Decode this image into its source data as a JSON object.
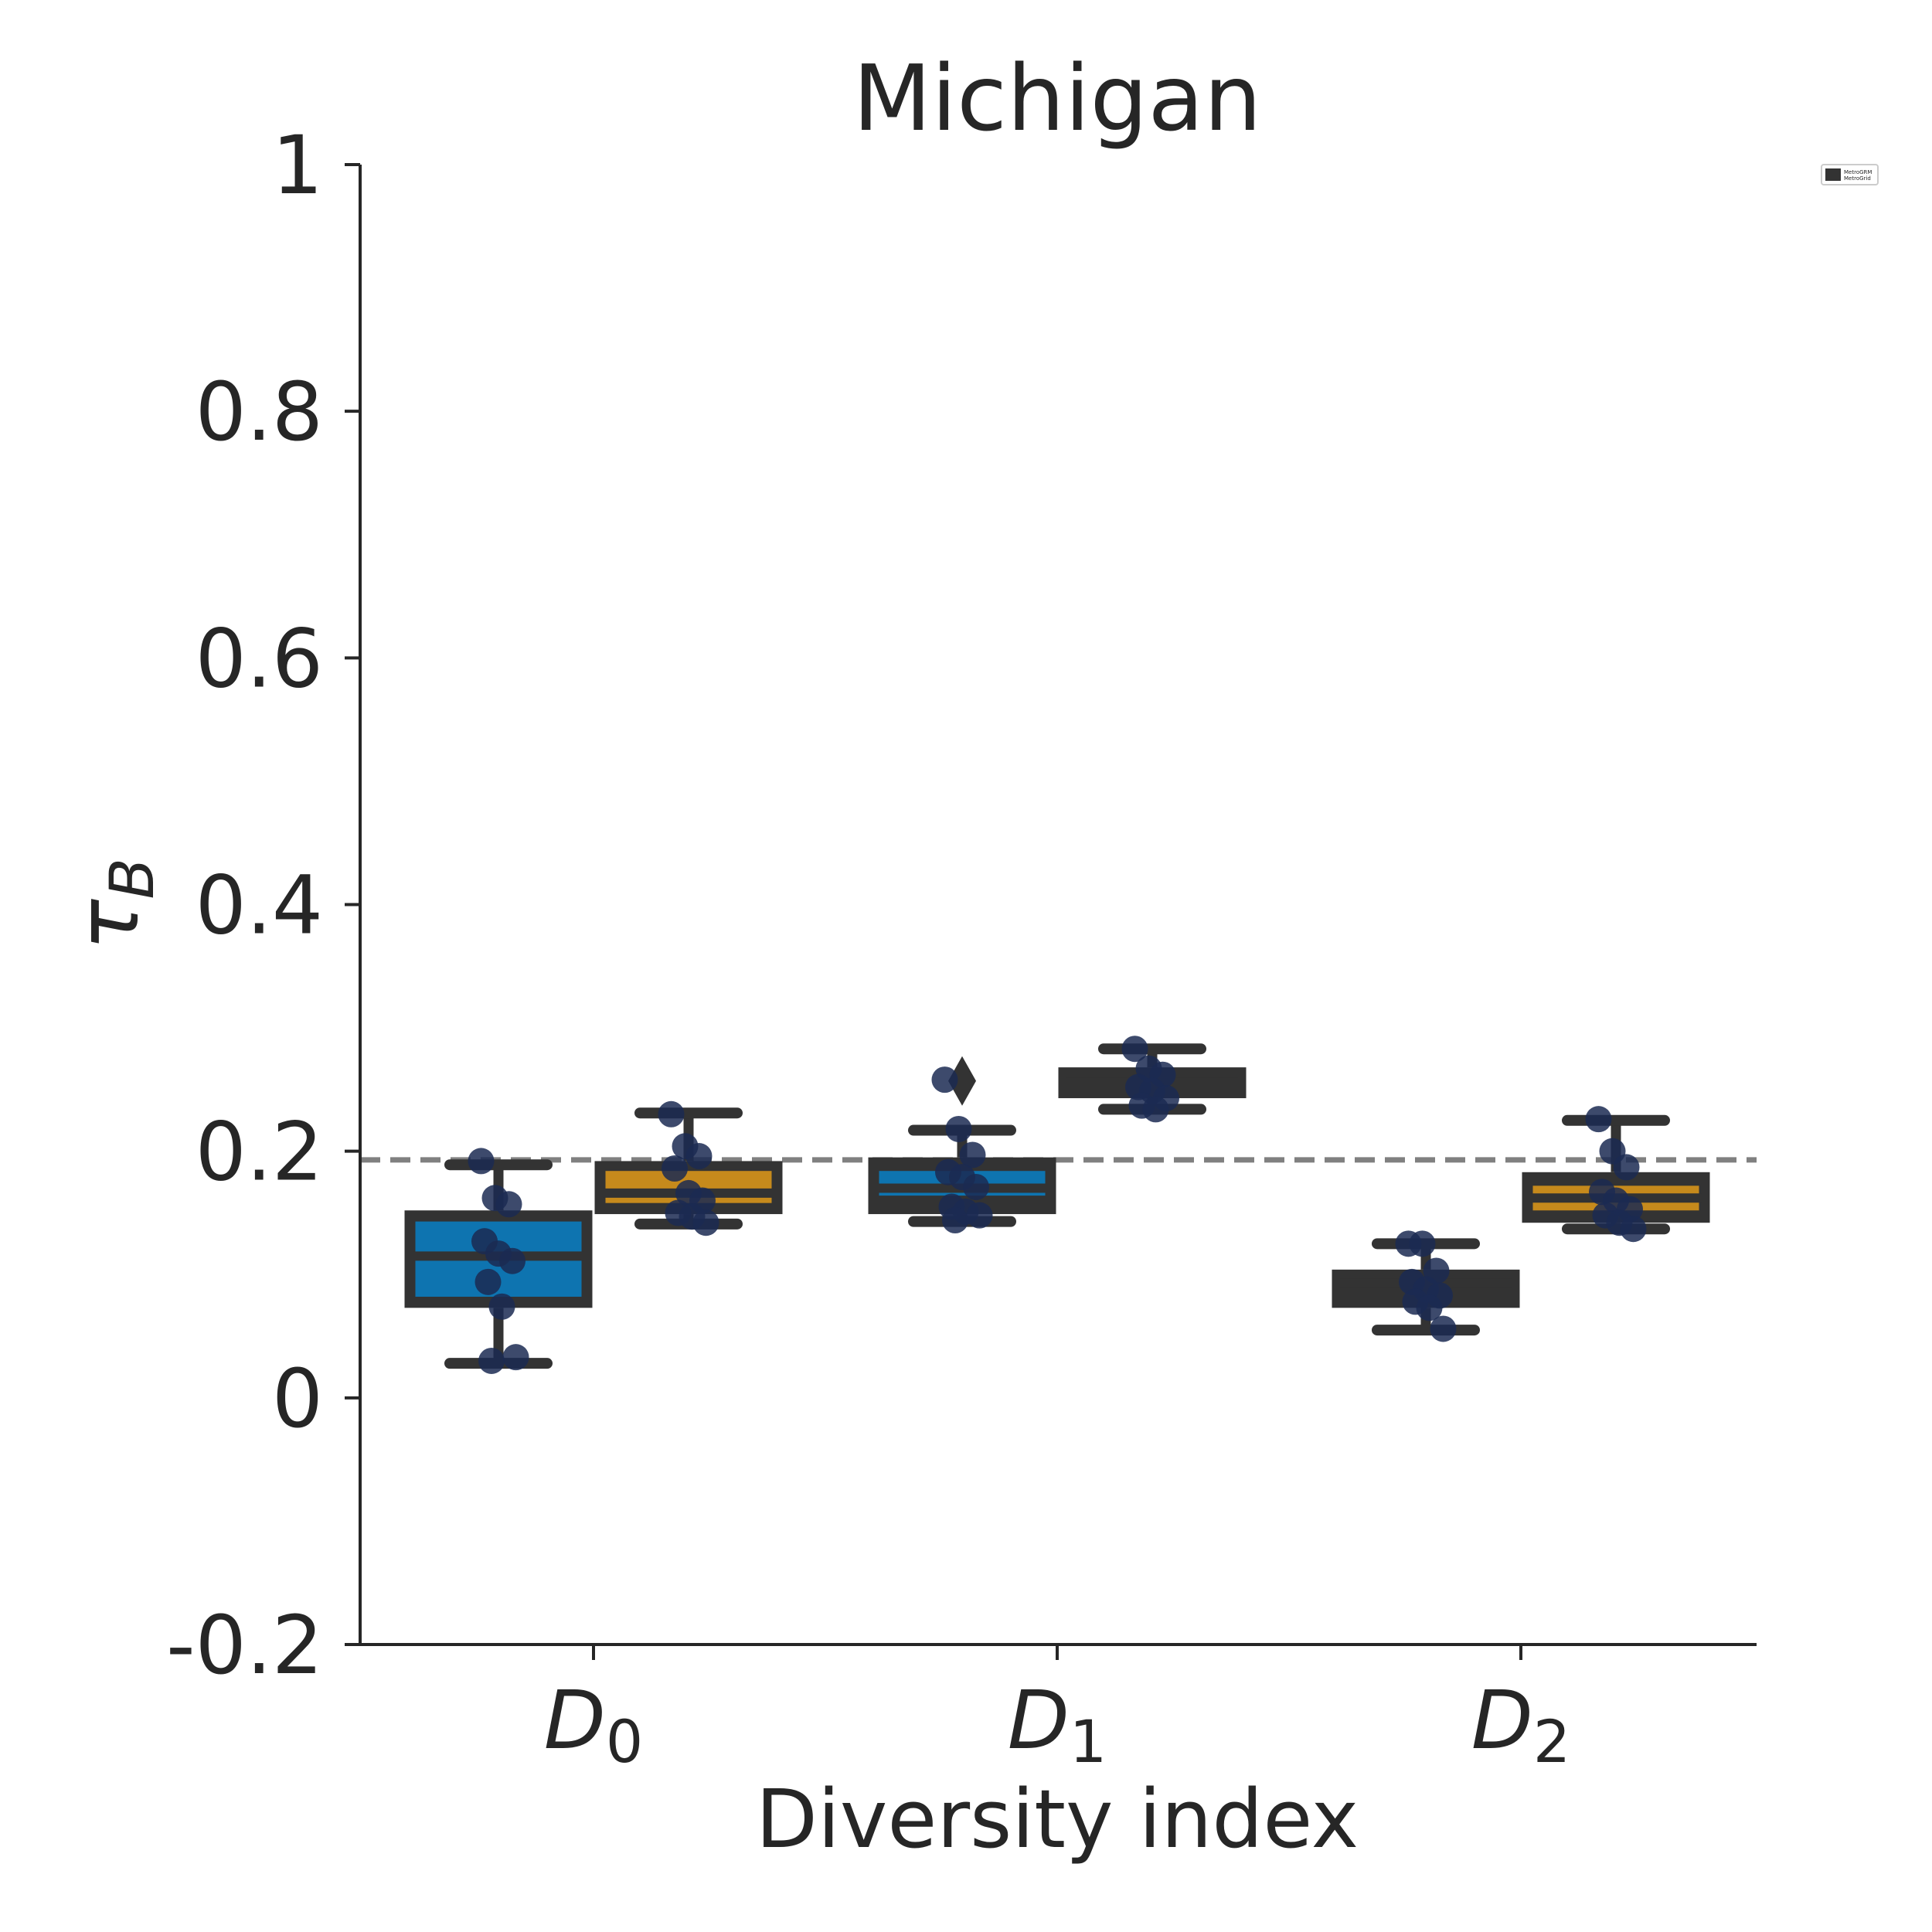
{
  "chart_data": {
    "type": "box",
    "title": "Michigan",
    "xlabel": "Diversity index",
    "ylabel": {
      "symbol": "τ",
      "subscript": "B"
    },
    "categories": [
      {
        "base": "D",
        "sub": "0"
      },
      {
        "base": "D",
        "sub": "1"
      },
      {
        "base": "D",
        "sub": "2"
      }
    ],
    "ylim": [
      -0.2,
      1.0
    ],
    "yticks": [
      {
        "value": -0.2,
        "label": "-0.2"
      },
      {
        "value": 0,
        "label": "0"
      },
      {
        "value": 0.2,
        "label": "0.2"
      },
      {
        "value": 0.4,
        "label": "0.4"
      },
      {
        "value": 0.6,
        "label": "0.6"
      },
      {
        "value": 0.8,
        "label": "0.8"
      },
      {
        "value": 1.0,
        "label": "1"
      }
    ],
    "reference_line": {
      "value": 0.193,
      "style": "dashed",
      "color": "#808080"
    },
    "legend": {
      "position": "top-right",
      "entries": [
        "MetroGRM",
        "MetroGrid"
      ]
    },
    "colors": {
      "box_edge": "#333333",
      "series_1": "#0e74b0",
      "series_2": "#c68a1c",
      "points": "#1b2a52"
    },
    "series": [
      {
        "color": "#0e74b0",
        "boxes": [
          {
            "category": 0,
            "whisker_low": 0.028,
            "q1": 0.073,
            "median": 0.115,
            "q3": 0.152,
            "whisker_high": 0.189,
            "fill_low": 0.082,
            "fill_high": 0.143,
            "fliers": []
          },
          {
            "category": 1,
            "whisker_low": 0.143,
            "q1": 0.149,
            "median": 0.17,
            "q3": 0.195,
            "whisker_high": 0.217,
            "fill_low": 0.164,
            "fill_high": 0.184,
            "fliers": [
              0.257
            ]
          },
          {
            "category": 2,
            "whisker_low": 0.055,
            "q1": 0.073,
            "median": 0.093,
            "q3": 0.104,
            "whisker_high": 0.125,
            "fill_low": 0.093,
            "fill_high": 0.093,
            "fliers": []
          }
        ],
        "points": [
          [
            0,
            [
              0.192,
              0.162,
              0.157,
              0.127,
              0.117,
              0.111,
              0.094,
              0.074,
              0.033,
              0.03
            ]
          ],
          [
            1,
            [
              0.258,
              0.218,
              0.197,
              0.183,
              0.179,
              0.171,
              0.155,
              0.151,
              0.148,
              0.144
            ]
          ],
          [
            2,
            [
              0.125,
              0.125,
              0.103,
              0.094,
              0.088,
              0.083,
              0.078,
              0.073,
              0.056
            ]
          ]
        ]
      },
      {
        "color": "#c68a1c",
        "boxes": [
          {
            "category": 0,
            "whisker_low": 0.141,
            "q1": 0.149,
            "median": 0.166,
            "q3": 0.192,
            "whisker_high": 0.231,
            "fill_low": 0.158,
            "fill_high": 0.184,
            "fliers": []
          },
          {
            "category": 1,
            "whisker_low": 0.234,
            "q1": 0.243,
            "median": 0.256,
            "q3": 0.268,
            "whisker_high": 0.283,
            "fill_low": 0.256,
            "fill_high": 0.256,
            "fliers": []
          },
          {
            "category": 2,
            "whisker_low": 0.137,
            "q1": 0.142,
            "median": 0.162,
            "q3": 0.183,
            "whisker_high": 0.225,
            "fill_low": 0.152,
            "fill_high": 0.172,
            "fliers": []
          }
        ],
        "points": [
          [
            0,
            [
              0.23,
              0.204,
              0.196,
              0.186,
              0.166,
              0.16,
              0.15,
              0.147,
              0.142
            ]
          ],
          [
            1,
            [
              0.283,
              0.267,
              0.262,
              0.252,
              0.249,
              0.243,
              0.237,
              0.234
            ]
          ],
          [
            2,
            [
              0.226,
              0.2,
              0.187,
              0.167,
              0.16,
              0.153,
              0.148,
              0.142,
              0.137
            ]
          ]
        ]
      }
    ]
  }
}
